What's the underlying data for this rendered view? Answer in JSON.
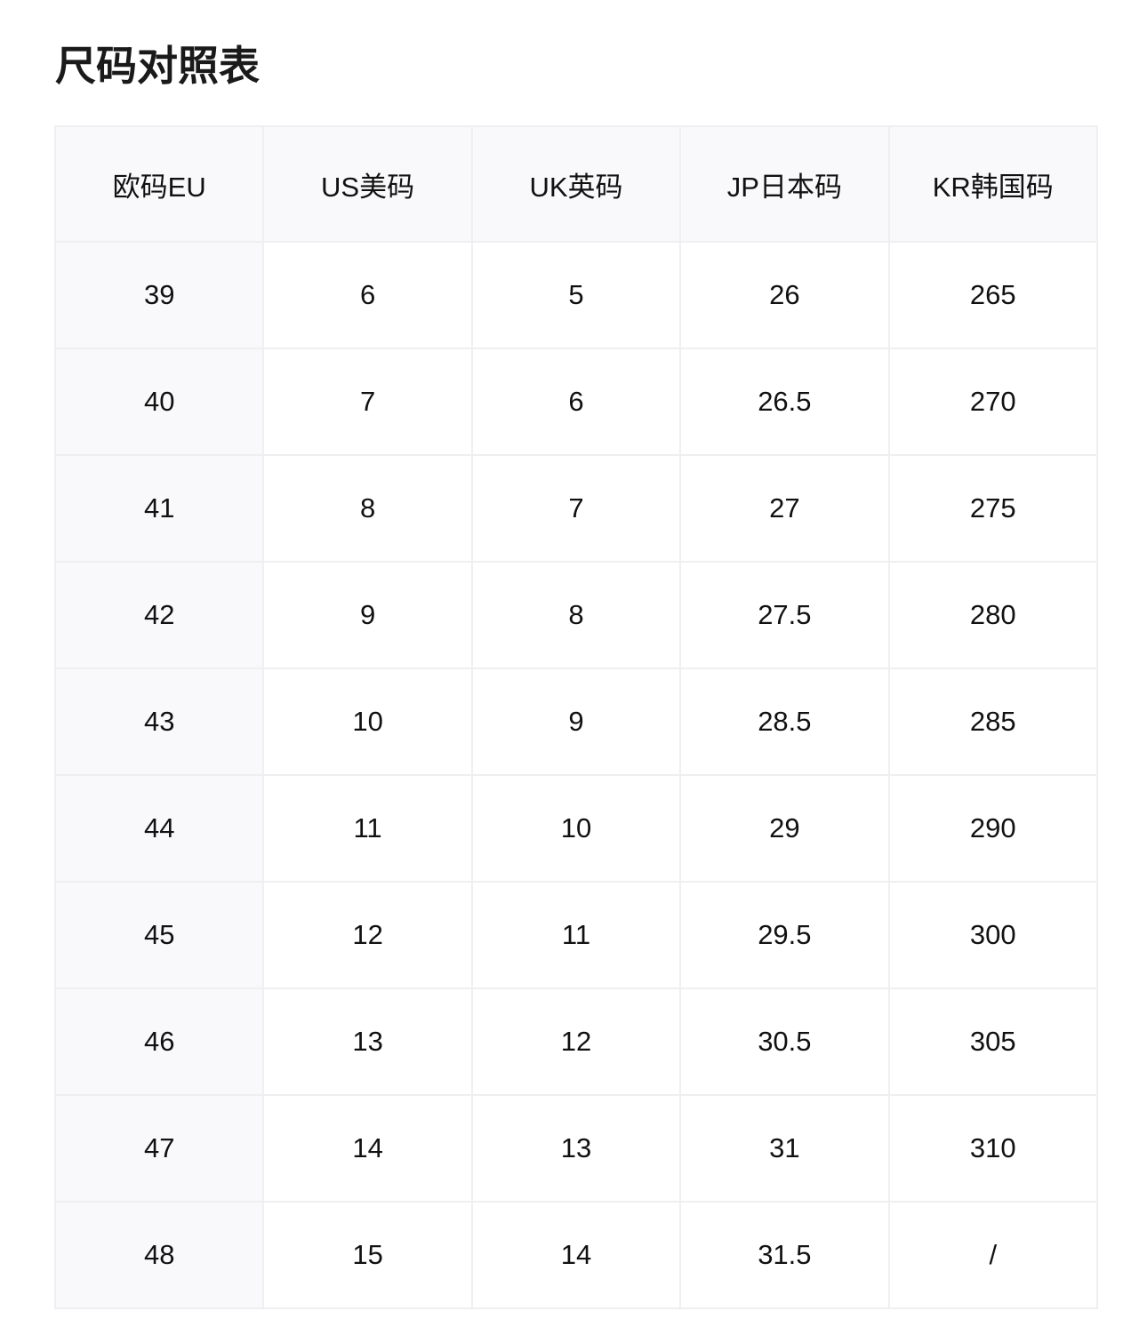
{
  "title": "尺码对照表",
  "headers": [
    "欧码EU",
    "US美码",
    "UK英码",
    "JP日本码",
    "KR韩国码"
  ],
  "rows": [
    [
      "39",
      "6",
      "5",
      "26",
      "265"
    ],
    [
      "40",
      "7",
      "6",
      "26.5",
      "270"
    ],
    [
      "41",
      "8",
      "7",
      "27",
      "275"
    ],
    [
      "42",
      "9",
      "8",
      "27.5",
      "280"
    ],
    [
      "43",
      "10",
      "9",
      "28.5",
      "285"
    ],
    [
      "44",
      "11",
      "10",
      "29",
      "290"
    ],
    [
      "45",
      "12",
      "11",
      "29.5",
      "300"
    ],
    [
      "46",
      "13",
      "12",
      "30.5",
      "305"
    ],
    [
      "47",
      "14",
      "13",
      "31",
      "310"
    ],
    [
      "48",
      "15",
      "14",
      "31.5",
      "/"
    ]
  ]
}
